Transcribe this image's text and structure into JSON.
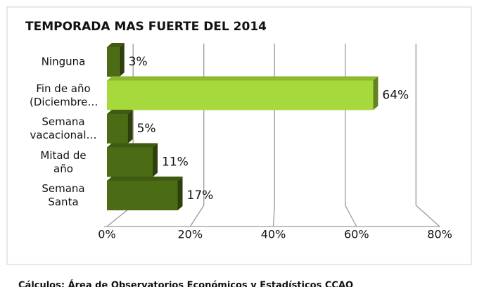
{
  "chart_data": {
    "type": "bar3d_horizontal",
    "title": "TEMPORADA MAS FUERTE DEL 2014",
    "categories": [
      "Ninguna",
      "Fin de año (Diciembre…",
      "Semana vacacional…",
      "Mitad de año",
      "Semana Santa"
    ],
    "values": [
      3,
      64,
      5,
      11,
      17
    ],
    "value_labels": [
      "3%",
      "64%",
      "5%",
      "11%",
      "17%"
    ],
    "colors": [
      "#4b6b14",
      "#a6d93b",
      "#4b6b14",
      "#4b6b14",
      "#4b6b14"
    ],
    "xlim": [
      0,
      80
    ],
    "xticks": [
      {
        "value": 0,
        "label": "0%"
      },
      {
        "value": 20,
        "label": "20%"
      },
      {
        "value": 40,
        "label": "40%"
      },
      {
        "value": 60,
        "label": "60%"
      },
      {
        "value": 80,
        "label": "80%"
      }
    ],
    "grid": true,
    "source": "Cálculos: Área de Observatorios Económicos y Estadísticos CCAQ"
  }
}
